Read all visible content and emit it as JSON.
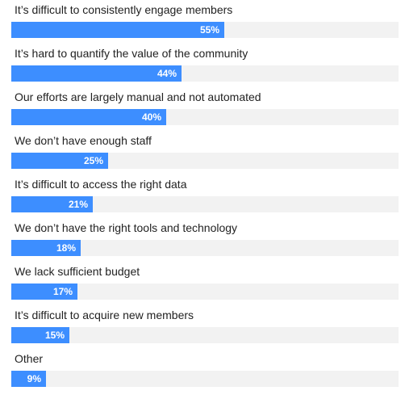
{
  "chart_data": {
    "type": "bar",
    "orientation": "horizontal",
    "categories": [
      "It’s difficult to consistently engage members",
      "It’s hard to quantify the value of the community",
      "Our efforts are largely manual and not automated",
      "We don’t have enough staff",
      "It’s difficult to access the right data",
      "We don’t have the right tools and technology",
      "We lack sufficient budget",
      "It’s difficult to acquire new members",
      "Other"
    ],
    "values": [
      55,
      44,
      40,
      25,
      21,
      18,
      17,
      15,
      9
    ],
    "value_labels": [
      "55%",
      "44%",
      "40%",
      "25%",
      "21%",
      "18%",
      "17%",
      "15%",
      "9%"
    ],
    "xlim": [
      0,
      100
    ],
    "grid": false,
    "colors": {
      "bar": "#3d8eff",
      "track": "#f2f2f2",
      "label_text": "#222222",
      "value_text": "#ffffff"
    }
  }
}
